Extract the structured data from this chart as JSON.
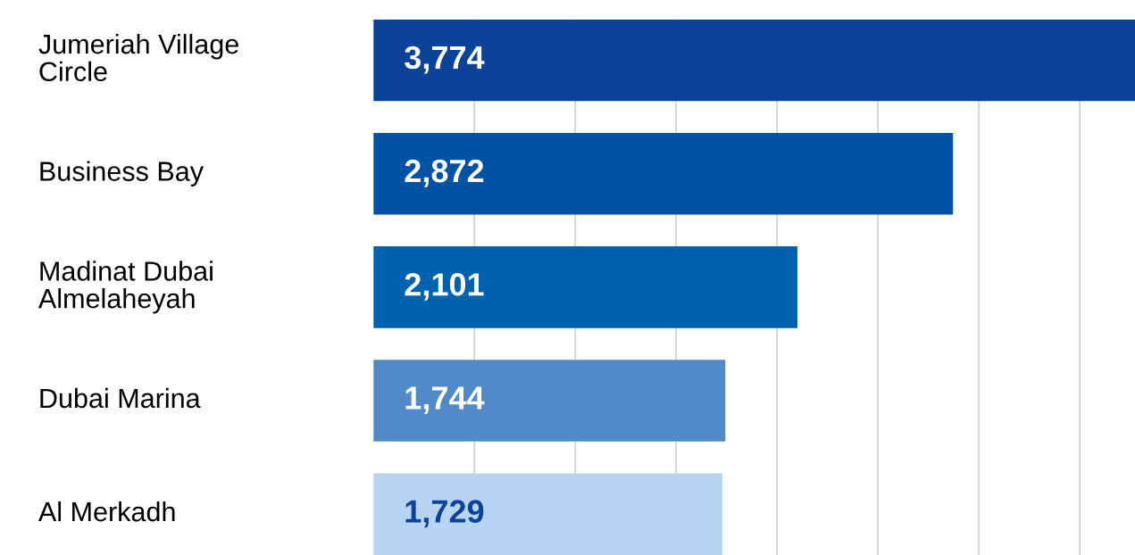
{
  "chart_data": {
    "type": "bar",
    "orientation": "horizontal",
    "categories": [
      "Jumeriah Village\nCircle",
      "Business Bay",
      "Madinat Dubai\nAlmelaheyah",
      "Dubai Marina",
      "Al Merkadh"
    ],
    "values": [
      3774,
      2872,
      2101,
      1744,
      1729
    ],
    "colors": [
      "#0a4397",
      "#0052a5",
      "#0062ae",
      "#5189c9",
      "#b7d5f3"
    ],
    "value_labels": [
      "3,774",
      "2,872",
      "2,101",
      "1,744",
      "1,729"
    ],
    "xlim": [
      0,
      3774
    ],
    "xticks": [
      {
        "value": 500,
        "label": null
      },
      {
        "value": 1000,
        "label": null
      },
      {
        "value": 1500,
        "label": null
      },
      {
        "value": 2000,
        "label": null
      },
      {
        "value": 2500,
        "label": null
      },
      {
        "value": 3000,
        "label": null
      },
      {
        "value": 3500,
        "label": null
      }
    ],
    "grid": "x"
  }
}
